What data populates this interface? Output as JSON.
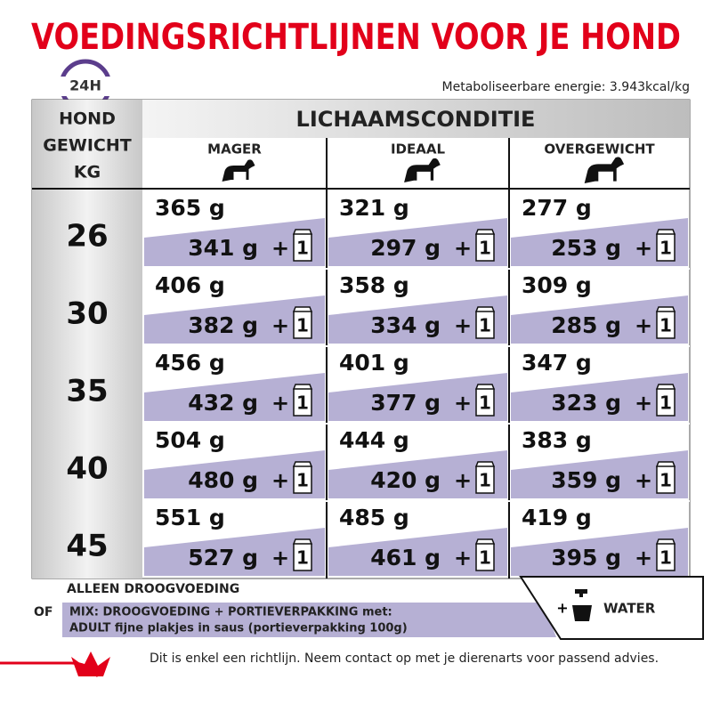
{
  "title": "VOEDINGSRICHTLIJNEN VOOR JE HOND",
  "clock_label": "24H",
  "energy": "Metaboliseerbare energie: 3.943kcal/kg",
  "table": {
    "weight_header": [
      "HOND",
      "GEWICHT",
      "KG"
    ],
    "condition_header": "LICHAAMSCONDITIE",
    "columns": [
      "MAGER",
      "IDEAAL",
      "OVERGEWICHT"
    ],
    "plus": "+",
    "pouch": "1",
    "rows": [
      {
        "weight": "26",
        "cells": [
          {
            "dry": "365 g",
            "mix": "341 g"
          },
          {
            "dry": "321 g",
            "mix": "297 g"
          },
          {
            "dry": "277 g",
            "mix": "253 g"
          }
        ]
      },
      {
        "weight": "30",
        "cells": [
          {
            "dry": "406 g",
            "mix": "382 g"
          },
          {
            "dry": "358 g",
            "mix": "334 g"
          },
          {
            "dry": "309 g",
            "mix": "285 g"
          }
        ]
      },
      {
        "weight": "35",
        "cells": [
          {
            "dry": "456 g",
            "mix": "432 g"
          },
          {
            "dry": "401 g",
            "mix": "377 g"
          },
          {
            "dry": "347 g",
            "mix": "323 g"
          }
        ]
      },
      {
        "weight": "40",
        "cells": [
          {
            "dry": "504 g",
            "mix": "480 g"
          },
          {
            "dry": "444 g",
            "mix": "420 g"
          },
          {
            "dry": "383 g",
            "mix": "359 g"
          }
        ]
      },
      {
        "weight": "45",
        "cells": [
          {
            "dry": "551 g",
            "mix": "527 g"
          },
          {
            "dry": "485 g",
            "mix": "461 g"
          },
          {
            "dry": "419 g",
            "mix": "395 g"
          }
        ]
      }
    ]
  },
  "legend": {
    "dry_only": "ALLEEN DROOGVOEDING",
    "or": "OF",
    "mix_line1": "MIX: DROOGVOEDING + PORTIEVERPAKKING met:",
    "mix_line2": "ADULT fijne plakjes in saus (portieverpakking 100g)",
    "plus": "+",
    "water": "WATER"
  },
  "footer": "Dit is enkel een richtlijn. Neem contact op met je dierenarts voor passend advies."
}
